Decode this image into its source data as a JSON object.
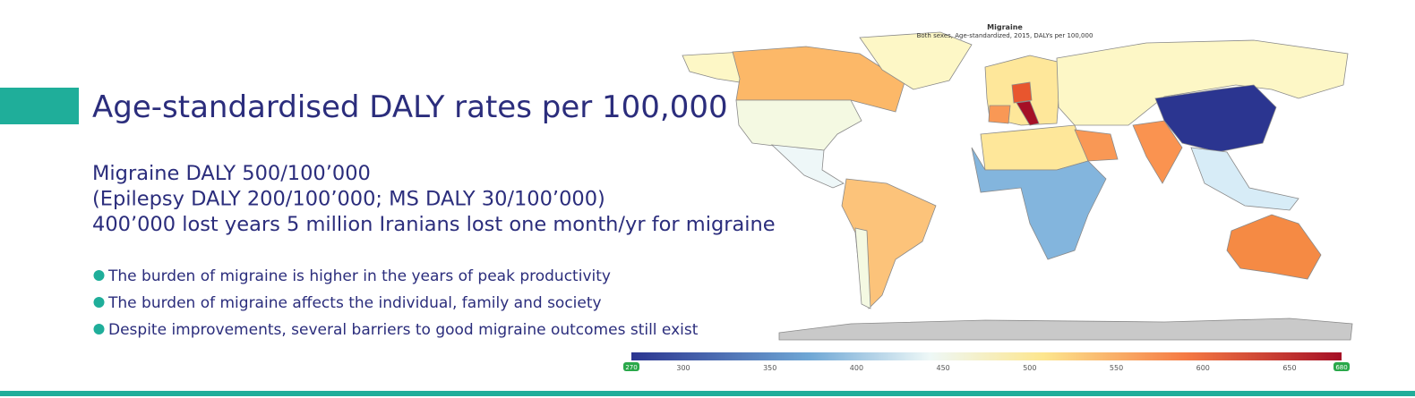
{
  "slide": {
    "title": "Age-standardised DALY rates per 100,000",
    "lines": [
      "Migraine DALY 500/100’000",
      "(Epilepsy DALY 200/100’000; MS DALY 30/100’000)",
      "400’000 lost years 5 million Iranians lost one month/yr for migraine"
    ],
    "bullets": [
      "The burden of migraine is higher in the years of peak productivity",
      "The burden of migraine affects the individual, family and society",
      "Despite improvements, several barriers to good migraine outcomes still exist"
    ]
  },
  "map": {
    "title": "Migraine",
    "subtitle": "Both sexes, Age-standardized, 2015, DALYs per 100,000",
    "scale": {
      "min": 270,
      "max": 680,
      "ticks": [
        300,
        350,
        400,
        450,
        500,
        550,
        600,
        650
      ]
    }
  }
}
